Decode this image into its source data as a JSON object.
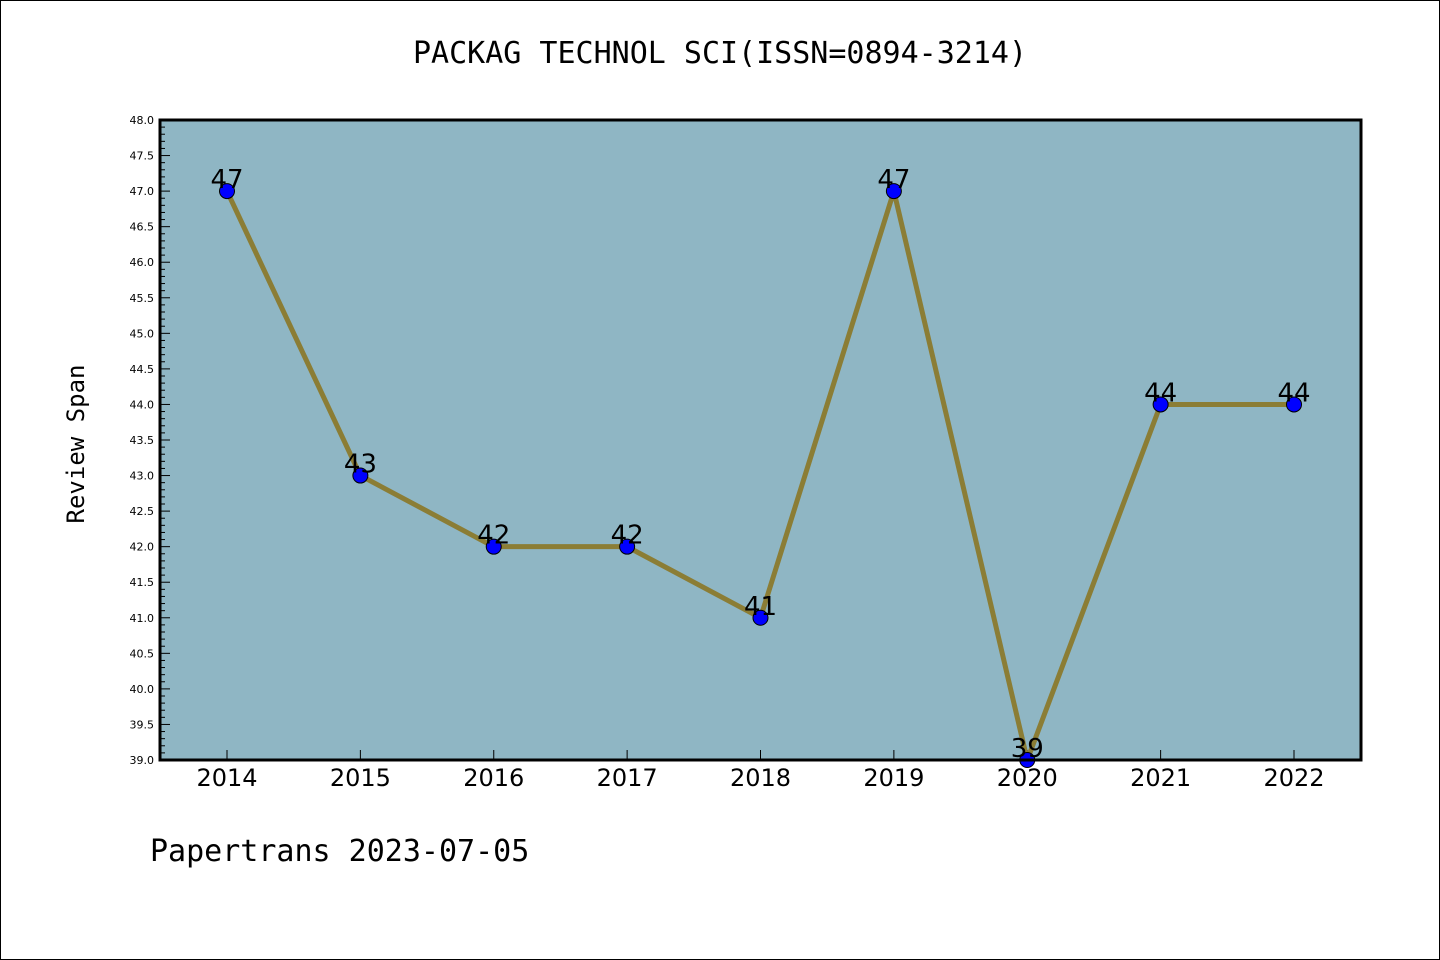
{
  "page": {
    "title": "PACKAG TECHNOL SCI(ISSN=0894-3214)",
    "footer": "Papertrans 2023-07-05"
  },
  "chart_data": {
    "type": "line",
    "title": "PACKAG TECHNOL SCI(ISSN=0894-3214)",
    "xlabel": "",
    "ylabel": "Review Span",
    "categories": [
      "2014",
      "2015",
      "2016",
      "2017",
      "2018",
      "2019",
      "2020",
      "2021",
      "2022"
    ],
    "series": [
      {
        "values": [
          47,
          43,
          42,
          42,
          41,
          47,
          39,
          44,
          44
        ]
      }
    ],
    "data_labels": [
      "47",
      "43",
      "42",
      "42",
      "41",
      "47",
      "39",
      "44",
      "44"
    ],
    "ylim": [
      39.0,
      48.0
    ],
    "ytick_step": 0.5,
    "grid": false,
    "colors": {
      "plot_background": "#8fb6c4",
      "line": "#8b7d35",
      "marker": "#0000ff"
    }
  }
}
